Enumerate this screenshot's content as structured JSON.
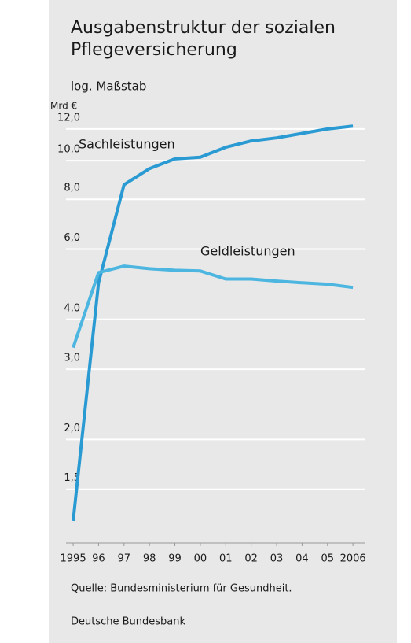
{
  "chart_data": {
    "type": "line",
    "title": "Ausgabenstruktur der sozialen Pflegeversicherung",
    "subtitle": "log. Maßstab",
    "y_label": "Mrd €",
    "source": "Quelle: Bundesministerium für Gesundheit.",
    "publisher": "Deutsche Bundesbank",
    "log_scale": true,
    "grid": true,
    "x": [
      1995,
      1996,
      1997,
      1998,
      1999,
      2000,
      2001,
      2002,
      2003,
      2004,
      2005,
      2006
    ],
    "series": [
      {
        "name": "Sachleistungen",
        "color": "#2a9ad3",
        "values": [
          1.25,
          4.94,
          8.7,
          9.55,
          10.1,
          10.2,
          10.8,
          11.2,
          11.4,
          11.7,
          12.0,
          12.2
        ]
      },
      {
        "name": "Geldleistungen",
        "color": "#4cb6e0",
        "values": [
          3.4,
          5.24,
          5.44,
          5.36,
          5.31,
          5.29,
          5.05,
          5.05,
          4.99,
          4.94,
          4.9,
          4.81
        ]
      }
    ],
    "xlim": [
      1994.72,
      2006.49
    ],
    "xticks": [
      1995,
      {
        "value": 1996,
        "label": "96"
      },
      {
        "value": 1997,
        "label": "97"
      },
      {
        "value": 1998,
        "label": "98"
      },
      {
        "value": 1999,
        "label": "99"
      },
      {
        "value": 2000,
        "label": "00"
      },
      {
        "value": 2001,
        "label": "01"
      },
      {
        "value": 2002,
        "label": "02"
      },
      {
        "value": 2003,
        "label": "03"
      },
      {
        "value": 2004,
        "label": "04"
      },
      {
        "value": 2005,
        "label": "05"
      },
      2006
    ],
    "ylim": [
      1.1,
      14
    ],
    "yticks": [
      {
        "value": 1.5,
        "label": "1,5"
      },
      {
        "value": 2,
        "label": "2,0"
      },
      {
        "value": 3,
        "label": "3,0"
      },
      {
        "value": 4,
        "label": "4,0"
      },
      {
        "value": 6,
        "label": "6,0"
      },
      {
        "value": 8,
        "label": "8,0"
      },
      {
        "value": 10,
        "label": "10,0"
      },
      {
        "value": 12,
        "label": "12,0"
      }
    ]
  }
}
